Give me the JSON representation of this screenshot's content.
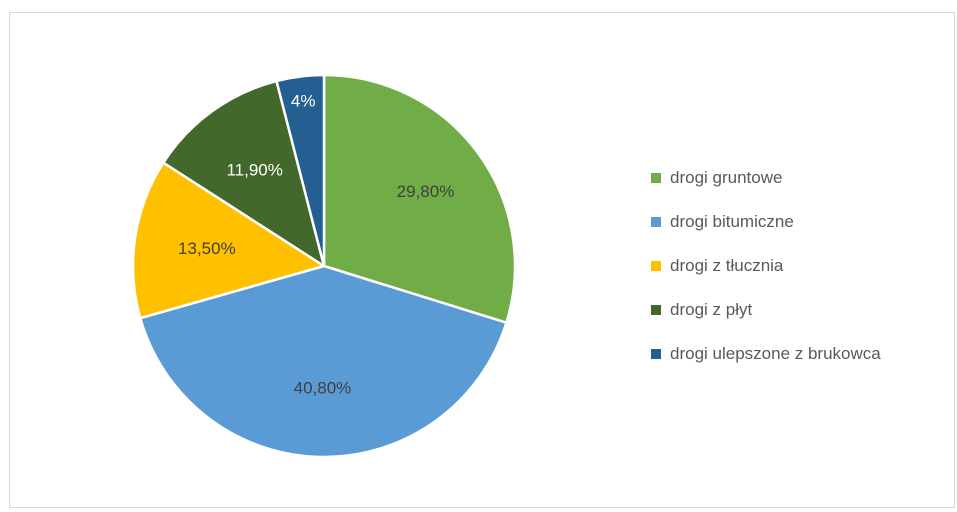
{
  "chart_data": {
    "type": "pie",
    "title": "",
    "slices": [
      {
        "label": "drogi gruntowe",
        "value": 29.8,
        "display": "29,80%",
        "color": "#70ad47"
      },
      {
        "label": "drogi bitumiczne",
        "value": 40.8,
        "display": "40,80%",
        "color": "#5b9bd5"
      },
      {
        "label": "drogi z tłucznia",
        "value": 13.5,
        "display": "13,50%",
        "color": "#ffc000"
      },
      {
        "label": "drogi z płyt",
        "value": 11.9,
        "display": "11,90%",
        "color": "#43682b"
      },
      {
        "label": "drogi ulepszone z brukowca",
        "value": 4,
        "display": "4%",
        "color": "#255e91"
      }
    ],
    "legend_position": "right",
    "start": "12 o'clock, clockwise"
  }
}
